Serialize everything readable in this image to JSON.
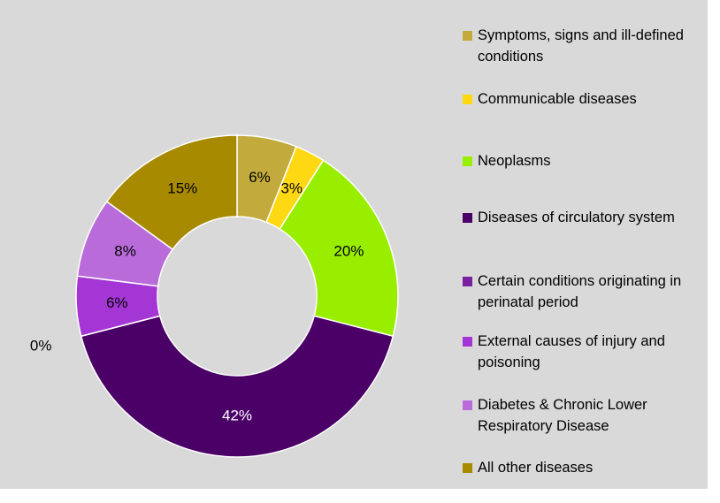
{
  "chart_data": {
    "type": "donut",
    "categories": [
      "Symptoms, signs and ill-defined conditions",
      "Communicable diseases",
      "Neoplasms",
      "Diseases of circulatory system",
      "Certain conditions originating in perinatal period",
      "External causes of injury and poisoning",
      "Diabetes & Chronic Lower Respiratory Disease",
      "All other diseases"
    ],
    "values": [
      6,
      3,
      20,
      42,
      0,
      6,
      8,
      15
    ],
    "value_labels": [
      "6%",
      "3%",
      "20%",
      "42%",
      "0%",
      "6%",
      "8%",
      "15%"
    ],
    "colors": [
      "#c2aa3c",
      "#ffd814",
      "#99ee00",
      "#4b0068",
      "#7a1fa0",
      "#a536d6",
      "#b96bd9",
      "#a88a00"
    ],
    "legend": "right"
  }
}
